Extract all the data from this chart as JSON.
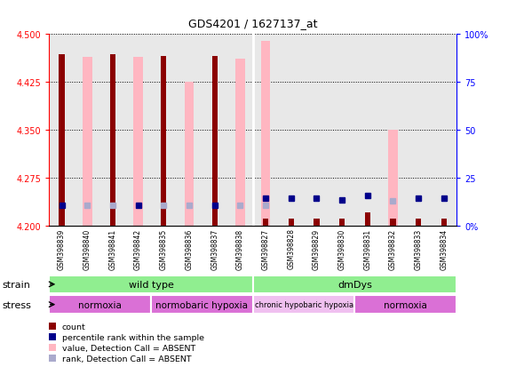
{
  "title": "GDS4201 / 1627137_at",
  "samples": [
    "GSM398839",
    "GSM398840",
    "GSM398841",
    "GSM398842",
    "GSM398835",
    "GSM398836",
    "GSM398837",
    "GSM398838",
    "GSM398827",
    "GSM398828",
    "GSM398829",
    "GSM398830",
    "GSM398831",
    "GSM398832",
    "GSM398833",
    "GSM398834"
  ],
  "red_bar_tops": [
    4.468,
    4.2,
    4.468,
    4.2,
    4.465,
    4.2,
    4.465,
    4.2,
    4.21,
    4.21,
    4.21,
    4.21,
    4.22,
    4.21,
    4.21,
    4.21
  ],
  "pink_bar_tops": [
    4.2,
    4.464,
    4.2,
    4.464,
    4.2,
    4.425,
    4.2,
    4.462,
    4.49,
    4.2,
    4.2,
    4.2,
    4.2,
    4.35,
    4.2,
    4.2
  ],
  "blue_y": [
    4.232,
    null,
    null,
    4.232,
    null,
    null,
    4.232,
    null,
    4.243,
    4.243,
    4.243,
    4.24,
    4.247,
    null,
    4.243,
    4.243
  ],
  "lblue_y": [
    null,
    4.232,
    4.232,
    null,
    4.232,
    4.232,
    null,
    4.232,
    4.232,
    null,
    null,
    null,
    null,
    4.238,
    null,
    null
  ],
  "base": 4.2,
  "ylim": [
    4.2,
    4.5
  ],
  "yticks": [
    4.2,
    4.275,
    4.35,
    4.425,
    4.5
  ],
  "y2ticks": [
    0,
    25,
    50,
    75,
    100
  ],
  "y2ticklabels": [
    "0%",
    "25",
    "50",
    "75",
    "100%"
  ],
  "bg_color": "#DCDCDC",
  "plot_bg": "#E8E8E8",
  "red_color": "#8B0000",
  "pink_color": "#FFB6C1",
  "blue_color": "#00008B",
  "lblue_color": "#AAAACC",
  "green_color": "#90EE90",
  "magenta_color": "#DA70D6",
  "lmagenta_color": "#F0C0F0",
  "white": "#FFFFFF",
  "strain_groups": [
    {
      "label": "wild type",
      "xstart": -0.5,
      "xend": 7.5
    },
    {
      "label": "dmDys",
      "xstart": 7.5,
      "xend": 15.5
    }
  ],
  "stress_groups": [
    {
      "label": "normoxia",
      "xstart": -0.5,
      "xend": 3.5,
      "light": false
    },
    {
      "label": "normobaric hypoxia",
      "xstart": 3.5,
      "xend": 7.5,
      "light": false
    },
    {
      "label": "chronic hypobaric hypoxia",
      "xstart": 7.5,
      "xend": 11.5,
      "light": true
    },
    {
      "label": "normoxia",
      "xstart": 11.5,
      "xend": 15.5,
      "light": false
    }
  ],
  "legend_items": [
    {
      "color": "#8B0000",
      "marker": "s",
      "label": "count"
    },
    {
      "color": "#00008B",
      "marker": "s",
      "label": "percentile rank within the sample"
    },
    {
      "color": "#FFB6C1",
      "marker": "s",
      "label": "value, Detection Call = ABSENT"
    },
    {
      "color": "#AAAACC",
      "marker": "s",
      "label": "rank, Detection Call = ABSENT"
    }
  ]
}
